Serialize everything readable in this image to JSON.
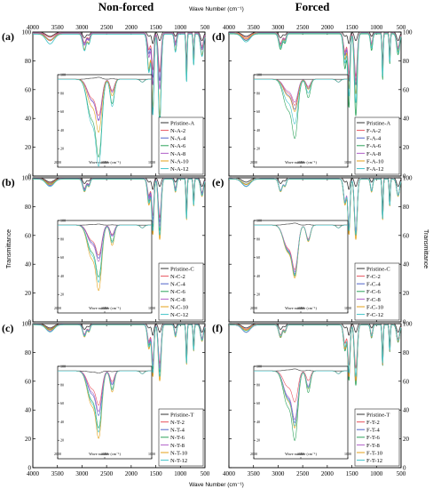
{
  "figure": {
    "col_titles": [
      "Non-forced",
      "Forced"
    ],
    "x_axis_label": "Wave Number (cm⁻¹)",
    "y_axis_label": "Transmittance",
    "inset_x_label": "Wave number (cm⁻¹)"
  },
  "colors": {
    "pristine": "#333333",
    "level2": "#e8525e",
    "level4": "#4f63c9",
    "level6": "#2ca35a",
    "level8": "#b060c8",
    "level10": "#e4a21a",
    "level12": "#3fc3c8"
  },
  "chart_data": [
    {
      "id": "a",
      "panel_label": "(a)",
      "type": "line",
      "xlim": [
        4000,
        500
      ],
      "ylim": [
        0,
        100
      ],
      "x_ticks": [
        4000,
        3500,
        3000,
        2500,
        2000,
        1500,
        1000,
        500
      ],
      "y_ticks": [
        0,
        20,
        40,
        60,
        80,
        100
      ],
      "legend": [
        "Pristine-A",
        "N-A-2",
        "N-A-4",
        "N-A-6",
        "N-A-8",
        "N-A-10",
        "N-A-12"
      ],
      "band_depths": [
        0,
        35,
        45,
        90,
        55,
        85,
        95
      ],
      "inset": {
        "xlim": [
          2000,
          1000
        ],
        "ylim": [
          0,
          100
        ],
        "x_ticks": [
          2000,
          1500,
          1000
        ],
        "y_ticks": [
          20,
          40,
          60,
          80,
          100
        ],
        "min_values": [
          97,
          60,
          56,
          20,
          55,
          44,
          11
        ]
      }
    },
    {
      "id": "d",
      "panel_label": "(d)",
      "type": "line",
      "xlim": [
        4000,
        500
      ],
      "ylim": [
        0,
        100
      ],
      "x_ticks": [
        4000,
        3500,
        3000,
        2500,
        2000,
        1500,
        1000,
        500
      ],
      "y_ticks": [
        0,
        20,
        40,
        60,
        80,
        100
      ],
      "legend": [
        "Pristine-A",
        "F-A-2",
        "F-A-4",
        "F-A-6",
        "F-A-8",
        "F-A-10",
        "F-A-12"
      ],
      "band_depths": [
        0,
        40,
        50,
        85,
        45,
        60,
        70
      ],
      "inset": {
        "xlim": [
          2000,
          1000
        ],
        "ylim": [
          0,
          100
        ],
        "x_ticks": [
          2000,
          1500,
          1000
        ],
        "y_ticks": [
          20,
          40,
          60,
          80,
          100
        ],
        "min_values": [
          95,
          70,
          66,
          38,
          73,
          64,
          52
        ]
      }
    },
    {
      "id": "b",
      "panel_label": "(b)",
      "type": "line",
      "xlim": [
        4000,
        500
      ],
      "ylim": [
        0,
        100
      ],
      "x_ticks": [
        4000,
        3500,
        3000,
        2500,
        2000,
        1500,
        1000,
        500
      ],
      "y_ticks": [
        0,
        20,
        40,
        60,
        80,
        100
      ],
      "legend": [
        "Pristine-C",
        "N-C-2",
        "N-C-4",
        "N-C-6",
        "N-C-8",
        "N-C-10",
        "N-C-12"
      ],
      "band_depths": [
        0,
        35,
        40,
        50,
        45,
        60,
        55
      ],
      "inset": {
        "xlim": [
          2000,
          1000
        ],
        "ylim": [
          0,
          100
        ],
        "x_ticks": [
          2000,
          1500,
          1000
        ],
        "y_ticks": [
          20,
          40,
          60,
          80,
          100
        ],
        "min_values": [
          96,
          66,
          63,
          45,
          60,
          32,
          40
        ]
      }
    },
    {
      "id": "e",
      "panel_label": "(e)",
      "type": "line",
      "xlim": [
        4000,
        500
      ],
      "ylim": [
        0,
        100
      ],
      "x_ticks": [
        4000,
        3500,
        3000,
        2500,
        2000,
        1500,
        1000,
        500
      ],
      "y_ticks": [
        0,
        20,
        40,
        60,
        80,
        100
      ],
      "legend": [
        "Pristine-C",
        "F-C-2",
        "F-C-4",
        "F-C-6",
        "F-C-8",
        "F-C-10",
        "F-C-12"
      ],
      "band_depths": [
        0,
        55,
        55,
        55,
        50,
        60,
        55
      ],
      "inset": {
        "xlim": [
          2000,
          1000
        ],
        "ylim": [
          0,
          100
        ],
        "x_ticks": [
          2000,
          1500,
          1000
        ],
        "y_ticks": [
          20,
          40,
          60,
          80,
          100
        ],
        "min_values": [
          97,
          52,
          48,
          46,
          50,
          44,
          47
        ]
      }
    },
    {
      "id": "c",
      "panel_label": "(c)",
      "type": "line",
      "xlim": [
        4000,
        500
      ],
      "ylim": [
        0,
        100
      ],
      "x_ticks": [
        4000,
        3500,
        3000,
        2500,
        2000,
        1500,
        1000,
        500
      ],
      "y_ticks": [
        0,
        20,
        40,
        60,
        80,
        100
      ],
      "legend": [
        "Pristine-T",
        "N-T-2",
        "N-T-4",
        "N-T-6",
        "N-T-8",
        "N-T-10",
        "N-T-12"
      ],
      "band_depths": [
        0,
        35,
        40,
        45,
        40,
        55,
        50
      ],
      "inset": {
        "xlim": [
          2000,
          1000
        ],
        "ylim": [
          0,
          100
        ],
        "x_ticks": [
          2000,
          1500,
          1000
        ],
        "y_ticks": [
          20,
          40,
          60,
          80,
          100
        ],
        "min_values": [
          93,
          62,
          52,
          40,
          56,
          30,
          36
        ]
      }
    },
    {
      "id": "f",
      "panel_label": "(f)",
      "type": "line",
      "xlim": [
        4000,
        500
      ],
      "ylim": [
        0,
        100
      ],
      "x_ticks": [
        4000,
        3500,
        3000,
        2500,
        2000,
        1500,
        1000,
        500
      ],
      "y_ticks": [
        0,
        20,
        40,
        60,
        80,
        100
      ],
      "legend": [
        "Pristine-T",
        "F-T-2",
        "F-T-4",
        "F-T-6",
        "F-T-8",
        "F-T-10",
        "F-T-12"
      ],
      "band_depths": [
        0,
        40,
        55,
        60,
        55,
        55,
        50
      ],
      "inset": {
        "xlim": [
          2000,
          1000
        ],
        "ylim": [
          0,
          100
        ],
        "x_ticks": [
          2000,
          1500,
          1000
        ],
        "y_ticks": [
          20,
          40,
          60,
          80,
          100
        ],
        "min_values": [
          97,
          65,
          45,
          28,
          48,
          40,
          42
        ]
      }
    }
  ]
}
